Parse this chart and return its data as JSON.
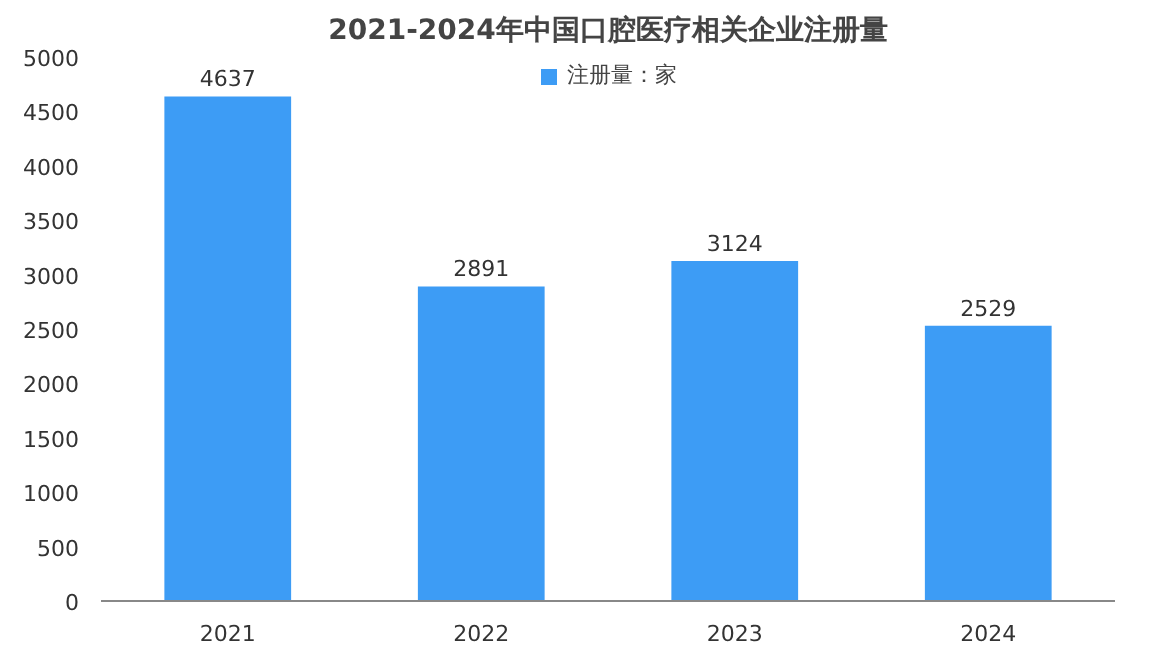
{
  "chart_data": {
    "type": "bar",
    "title": "2021-2024年中国口腔医疗相关企业注册量",
    "categories": [
      "2021",
      "2022",
      "2023",
      "2024"
    ],
    "series": [
      {
        "name": "注册量：家",
        "color": "#3d9cf5",
        "values": [
          4637,
          2891,
          3124,
          2529
        ]
      }
    ],
    "ylim": [
      0,
      5000
    ],
    "yticks": [
      0,
      500,
      1000,
      1500,
      2000,
      2500,
      3000,
      3500,
      4000,
      4500,
      5000
    ],
    "grid": false,
    "legend": "top",
    "data_labels": true
  }
}
